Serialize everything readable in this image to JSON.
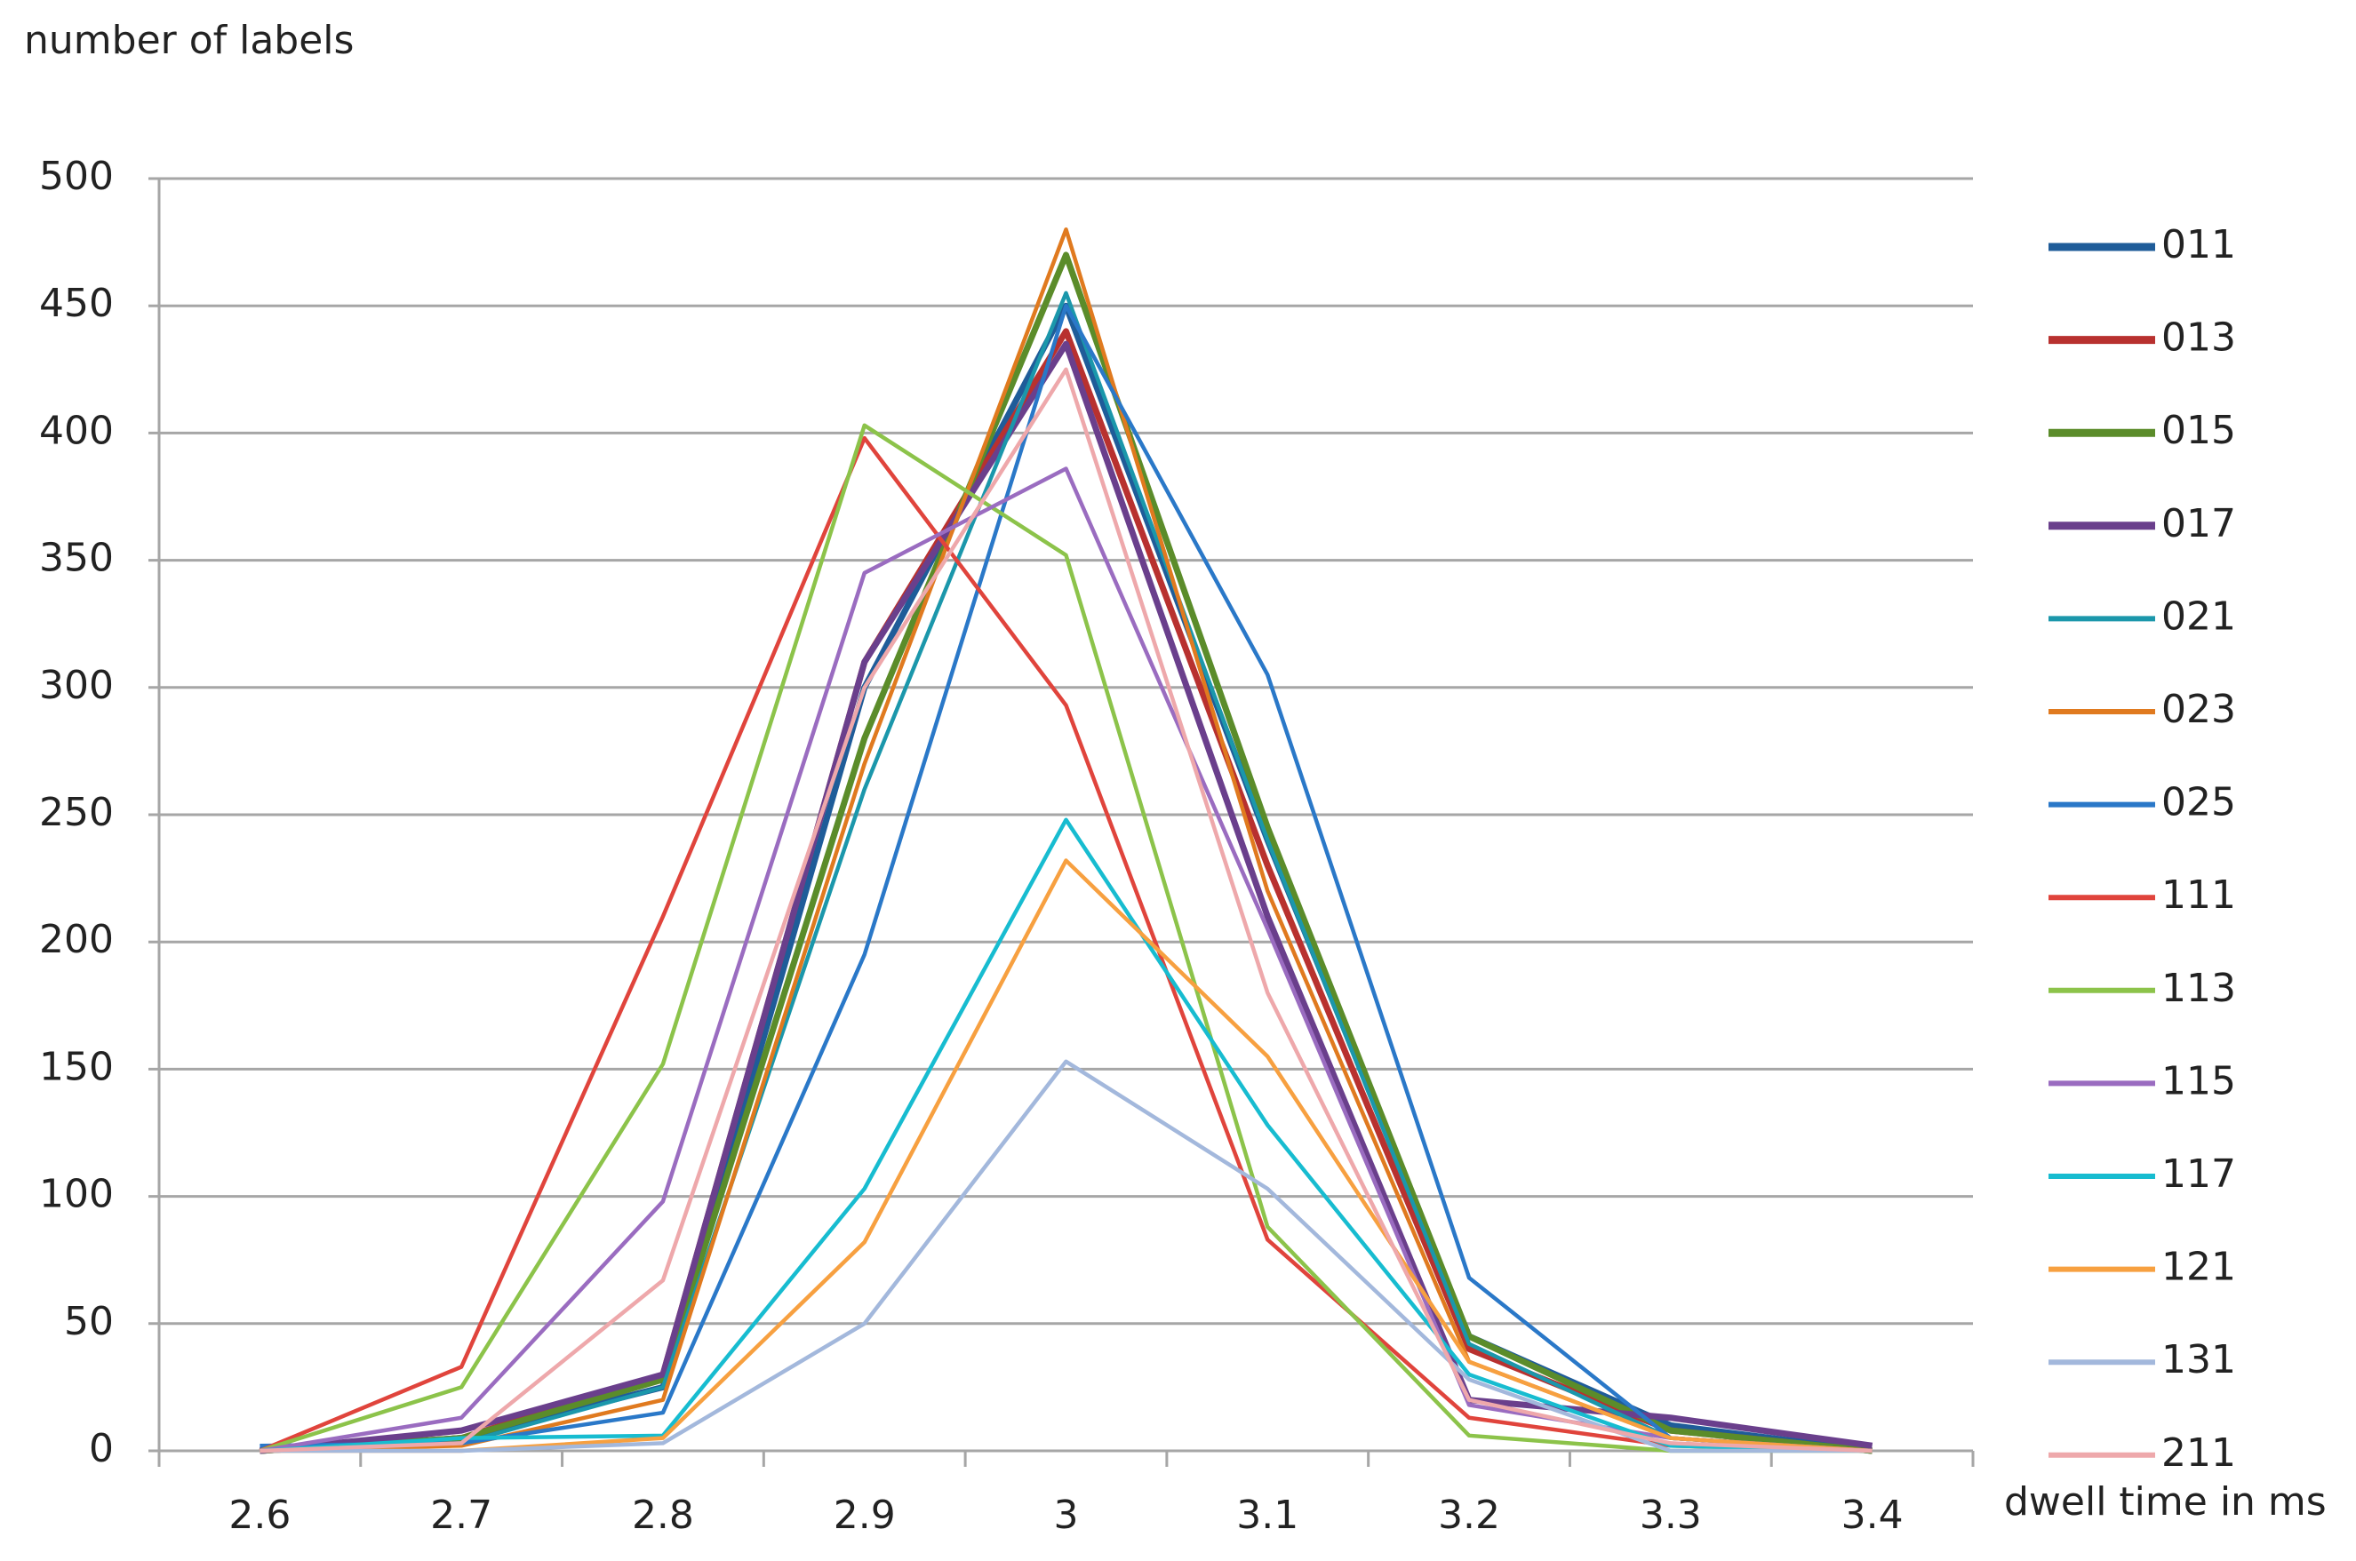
{
  "chart_data": {
    "type": "line",
    "y_axis_title": "number of labels",
    "x_axis_title": "dwell time in ms",
    "categories": [
      "2.6",
      "2.7",
      "2.8",
      "2.9",
      "3",
      "3.1",
      "3.2",
      "3.3",
      "3.4"
    ],
    "ylim": [
      0,
      500
    ],
    "yticks": [
      0,
      50,
      100,
      150,
      200,
      250,
      300,
      350,
      400,
      450,
      500
    ],
    "grid": true,
    "legend": "right",
    "series": [
      {
        "name": "011",
        "color": "#1f5c99",
        "values": [
          0,
          5,
          25,
          300,
          450,
          240,
          45,
          10,
          0
        ]
      },
      {
        "name": "013",
        "color": "#b8312f",
        "values": [
          0,
          5,
          30,
          310,
          440,
          230,
          40,
          8,
          0
        ]
      },
      {
        "name": "015",
        "color": "#5b8c2a",
        "values": [
          0,
          5,
          28,
          280,
          470,
          245,
          45,
          8,
          0
        ]
      },
      {
        "name": "017",
        "color": "#6a3f8c",
        "values": [
          0,
          8,
          30,
          310,
          435,
          210,
          20,
          13,
          2
        ]
      },
      {
        "name": "021",
        "color": "#1b97ab",
        "values": [
          0,
          3,
          25,
          260,
          455,
          240,
          42,
          5,
          0
        ]
      },
      {
        "name": "023",
        "color": "#e07a1f",
        "values": [
          0,
          2,
          20,
          270,
          480,
          220,
          35,
          5,
          0
        ]
      },
      {
        "name": "025",
        "color": "#2a78c8",
        "values": [
          2,
          3,
          15,
          195,
          450,
          305,
          68,
          5,
          0
        ]
      },
      {
        "name": "111",
        "color": "#e0443c",
        "values": [
          0,
          33,
          210,
          398,
          293,
          83,
          13,
          2,
          0
        ]
      },
      {
        "name": "113",
        "color": "#8cc34a",
        "values": [
          0,
          25,
          152,
          403,
          352,
          88,
          6,
          0,
          0
        ]
      },
      {
        "name": "115",
        "color": "#9a6cc0",
        "values": [
          0,
          13,
          98,
          345,
          386,
          205,
          18,
          5,
          0
        ]
      },
      {
        "name": "117",
        "color": "#17bcd0",
        "values": [
          0,
          5,
          6,
          103,
          248,
          128,
          30,
          2,
          0
        ]
      },
      {
        "name": "121",
        "color": "#f7a040",
        "values": [
          0,
          0,
          5,
          82,
          232,
          155,
          35,
          5,
          0
        ]
      },
      {
        "name": "131",
        "color": "#a3b8dc",
        "values": [
          0,
          0,
          3,
          50,
          153,
          103,
          28,
          0,
          0
        ]
      },
      {
        "name": "211",
        "color": "#eea8ab",
        "values": [
          0,
          3,
          67,
          300,
          425,
          180,
          20,
          3,
          0
        ]
      }
    ]
  }
}
